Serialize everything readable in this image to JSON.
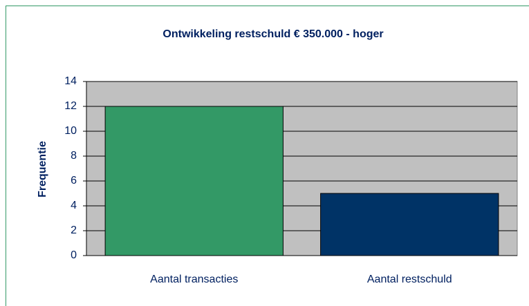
{
  "chart_data": {
    "type": "bar",
    "title": "Ontwikkeling restschuld € 350.000 - hoger",
    "ylabel": "Frequentie",
    "categories": [
      "Aantal transacties",
      "Aantal restschuld"
    ],
    "values": [
      12,
      5
    ],
    "colors": [
      "#339966",
      "#003366"
    ],
    "ylim": [
      0,
      14
    ],
    "yticks": [
      0,
      2,
      4,
      6,
      8,
      10,
      12,
      14
    ],
    "grid": true
  }
}
